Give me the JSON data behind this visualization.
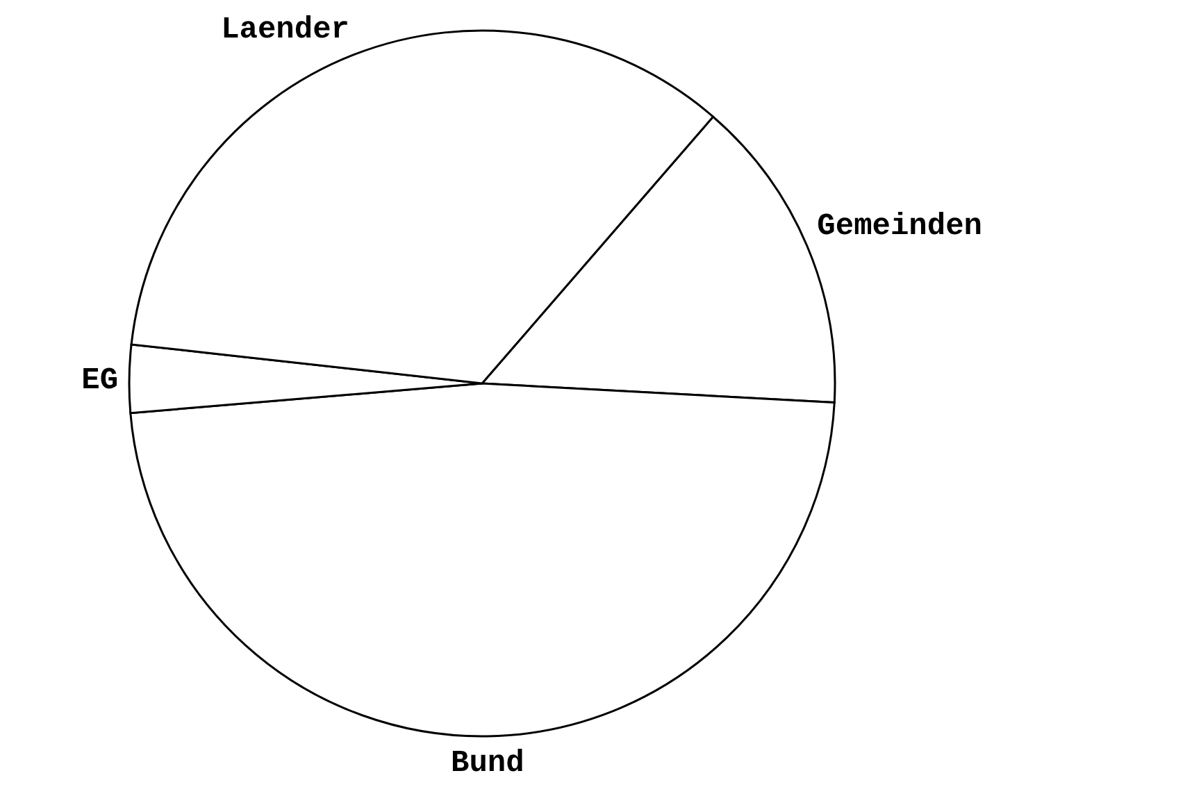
{
  "chart_data": {
    "type": "pie",
    "categories": [
      "Gemeinden",
      "Bund",
      "EG",
      "Laender"
    ],
    "values": [
      14.5,
      47.8,
      3.1,
      34.6
    ],
    "colors": [
      "#ffffff",
      "#ffffff",
      "#ffffff",
      "#ffffff"
    ]
  }
}
